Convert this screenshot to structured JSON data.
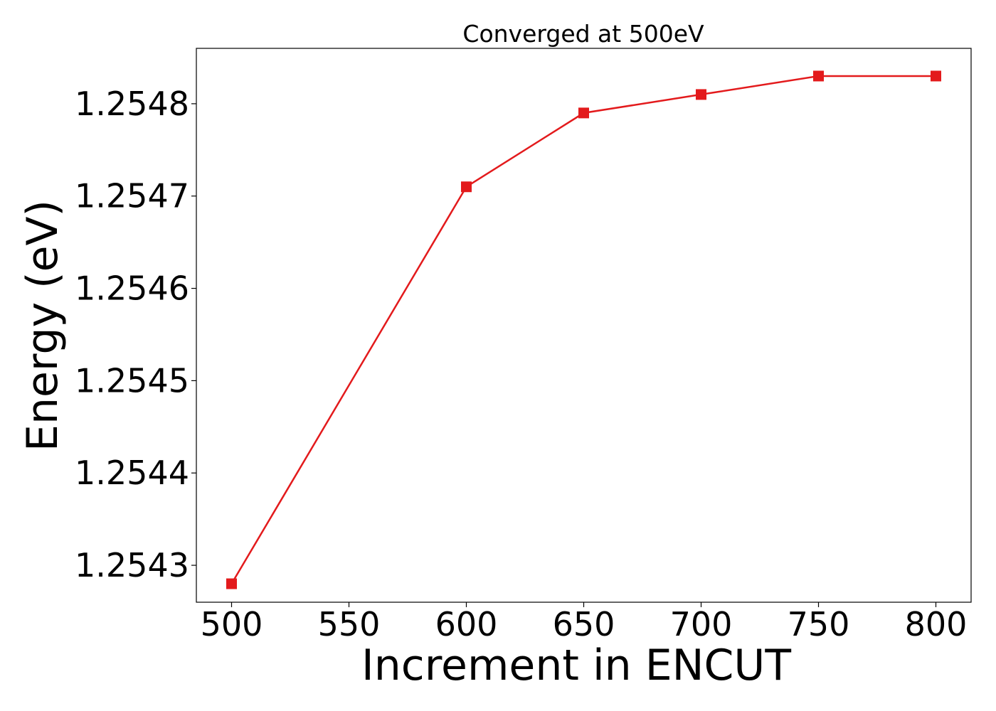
{
  "chart_data": {
    "type": "line",
    "title": "Converged at 500eV",
    "xlabel": "Increment in ENCUT",
    "ylabel": "Energy (eV)",
    "x": [
      500,
      600,
      650,
      700,
      750,
      800
    ],
    "series": [
      {
        "values": [
          1.25428,
          1.25471,
          1.25479,
          1.25481,
          1.25483,
          1.25483
        ],
        "color": "#e31a1c",
        "marker": "square"
      }
    ],
    "x_ticks": [
      "500",
      "550",
      "600",
      "650",
      "700",
      "750",
      "800"
    ],
    "y_ticks": [
      "1.2543",
      "1.2544",
      "1.2545",
      "1.2546",
      "1.2547",
      "1.2548"
    ],
    "xlim": [
      485,
      815
    ],
    "ylim": [
      1.25426,
      1.25486
    ],
    "grid": false
  }
}
